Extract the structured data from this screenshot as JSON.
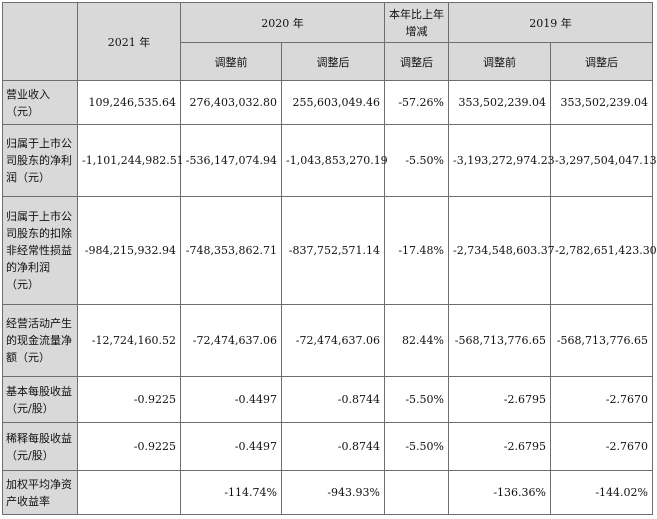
{
  "header": {
    "year_2021": "2021 年",
    "year_2020": "2020 年",
    "yoy": "本年比上年增减",
    "year_2019": "2019 年",
    "before_adjust": "调整前",
    "after_adjust": "调整后"
  },
  "rows": [
    {
      "label": "营业收入（元）",
      "v2021": "109,246,535.64",
      "v2020_before": "276,403,032.80",
      "v2020_after": "255,603,049.46",
      "yoy": "-57.26%",
      "v2019_before": "353,502,239.04",
      "v2019_after": "353,502,239.04"
    },
    {
      "label": "归属于上市公司股东的净利润（元）",
      "v2021": "-1,101,244,982.51",
      "v2020_before": "-536,147,074.94",
      "v2020_after": "-1,043,853,270.19",
      "yoy": "-5.50%",
      "v2019_before": "-3,193,272,974.23",
      "v2019_after": "-3,297,504,047.13"
    },
    {
      "label": "归属于上市公司股东的扣除非经常性损益的净利润（元）",
      "v2021": "-984,215,932.94",
      "v2020_before": "-748,353,862.71",
      "v2020_after": "-837,752,571.14",
      "yoy": "-17.48%",
      "v2019_before": "-2,734,548,603.37",
      "v2019_after": "-2,782,651,423.30"
    },
    {
      "label": "经营活动产生的现金流量净额（元）",
      "v2021": "-12,724,160.52",
      "v2020_before": "-72,474,637.06",
      "v2020_after": "-72,474,637.06",
      "yoy": "82.44%",
      "v2019_before": "-568,713,776.65",
      "v2019_after": "-568,713,776.65"
    },
    {
      "label": "基本每股收益（元/股）",
      "v2021": "-0.9225",
      "v2020_before": "-0.4497",
      "v2020_after": "-0.8744",
      "yoy": "-5.50%",
      "v2019_before": "-2.6795",
      "v2019_after": "-2.7670"
    },
    {
      "label": "稀释每股收益（元/股）",
      "v2021": "-0.9225",
      "v2020_before": "-0.4497",
      "v2020_after": "-0.8744",
      "yoy": "-5.50%",
      "v2019_before": "-2.6795",
      "v2019_after": "-2.7670"
    },
    {
      "label": "加权平均净资产收益率",
      "v2021": "",
      "v2020_before": "-114.74%",
      "v2020_after": "-943.93%",
      "yoy": "",
      "v2019_before": "-136.36%",
      "v2019_after": "-144.02%"
    }
  ]
}
